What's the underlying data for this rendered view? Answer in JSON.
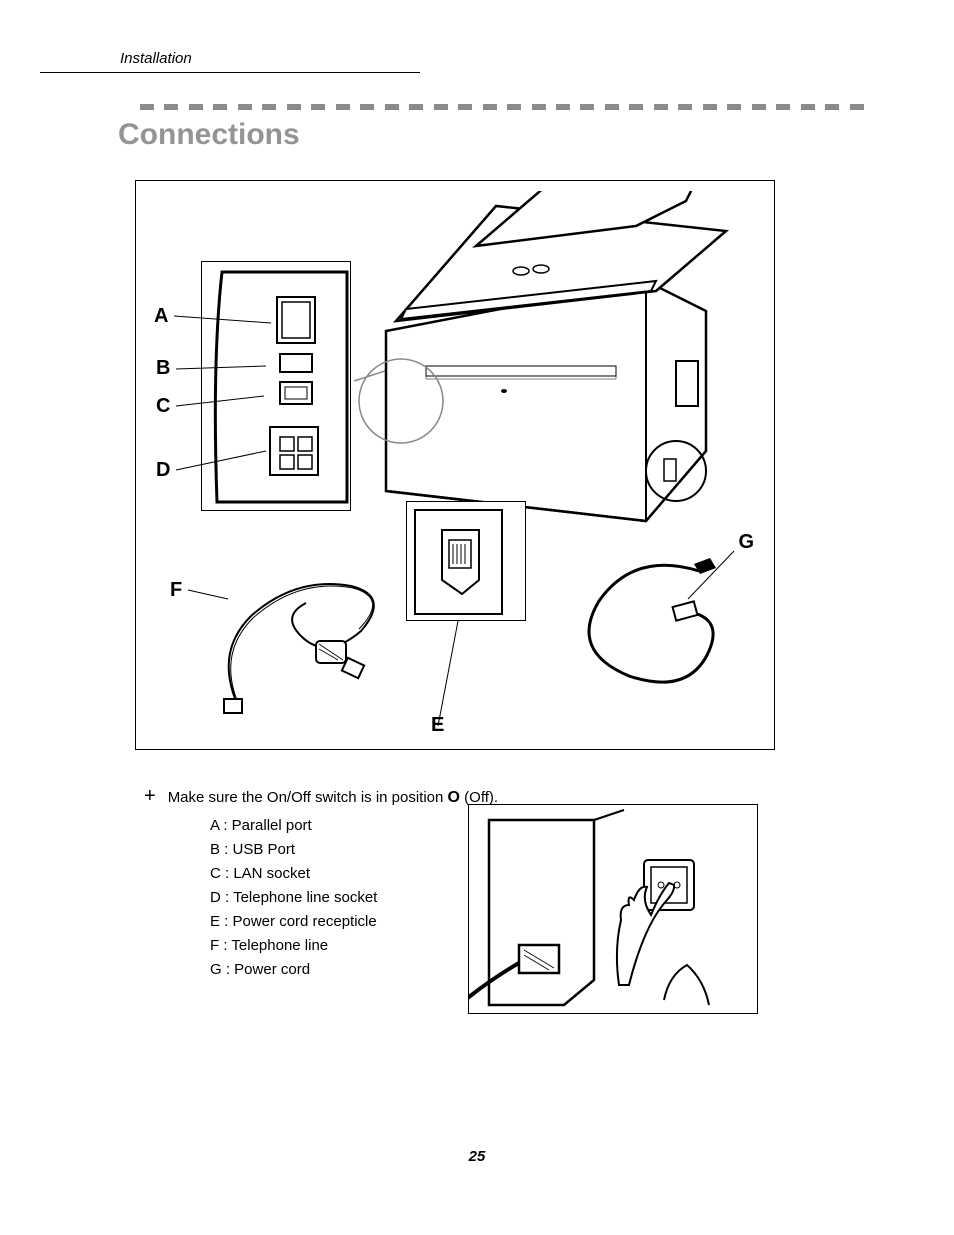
{
  "header": {
    "section_label": "Installation",
    "title": "Connections",
    "title_color": "#949494",
    "dash_color": "#8a8a8a",
    "dash_count": 30
  },
  "figure": {
    "labels": {
      "a": "A",
      "b": "B",
      "c": "C",
      "d": "D",
      "e": "E",
      "f": "F",
      "g": "G"
    },
    "border_color": "#000000",
    "background_color": "#ffffff",
    "label_fontsize": 20,
    "label_fontweight": "bold"
  },
  "instruction": {
    "bullet": "+",
    "text_prefix": "Make sure the On/Off switch is in position ",
    "symbol": "O",
    "text_suffix": " (Off)."
  },
  "legend": {
    "items": [
      "A : Parallel port",
      "B : USB Port",
      "C : LAN socket",
      "D : Telephone line socket",
      "E : Power cord recepticle",
      "F : Telephone line",
      "G : Power cord"
    ],
    "fontsize": 15
  },
  "page_number": "25",
  "colors": {
    "text": "#000000",
    "background": "#ffffff",
    "divider_gray": "#8a8a8a",
    "title_gray": "#949494"
  },
  "typography": {
    "body_font": "Verdana",
    "body_size_pt": 11,
    "title_size_pt": 22,
    "page_number_style": "bold italic"
  }
}
